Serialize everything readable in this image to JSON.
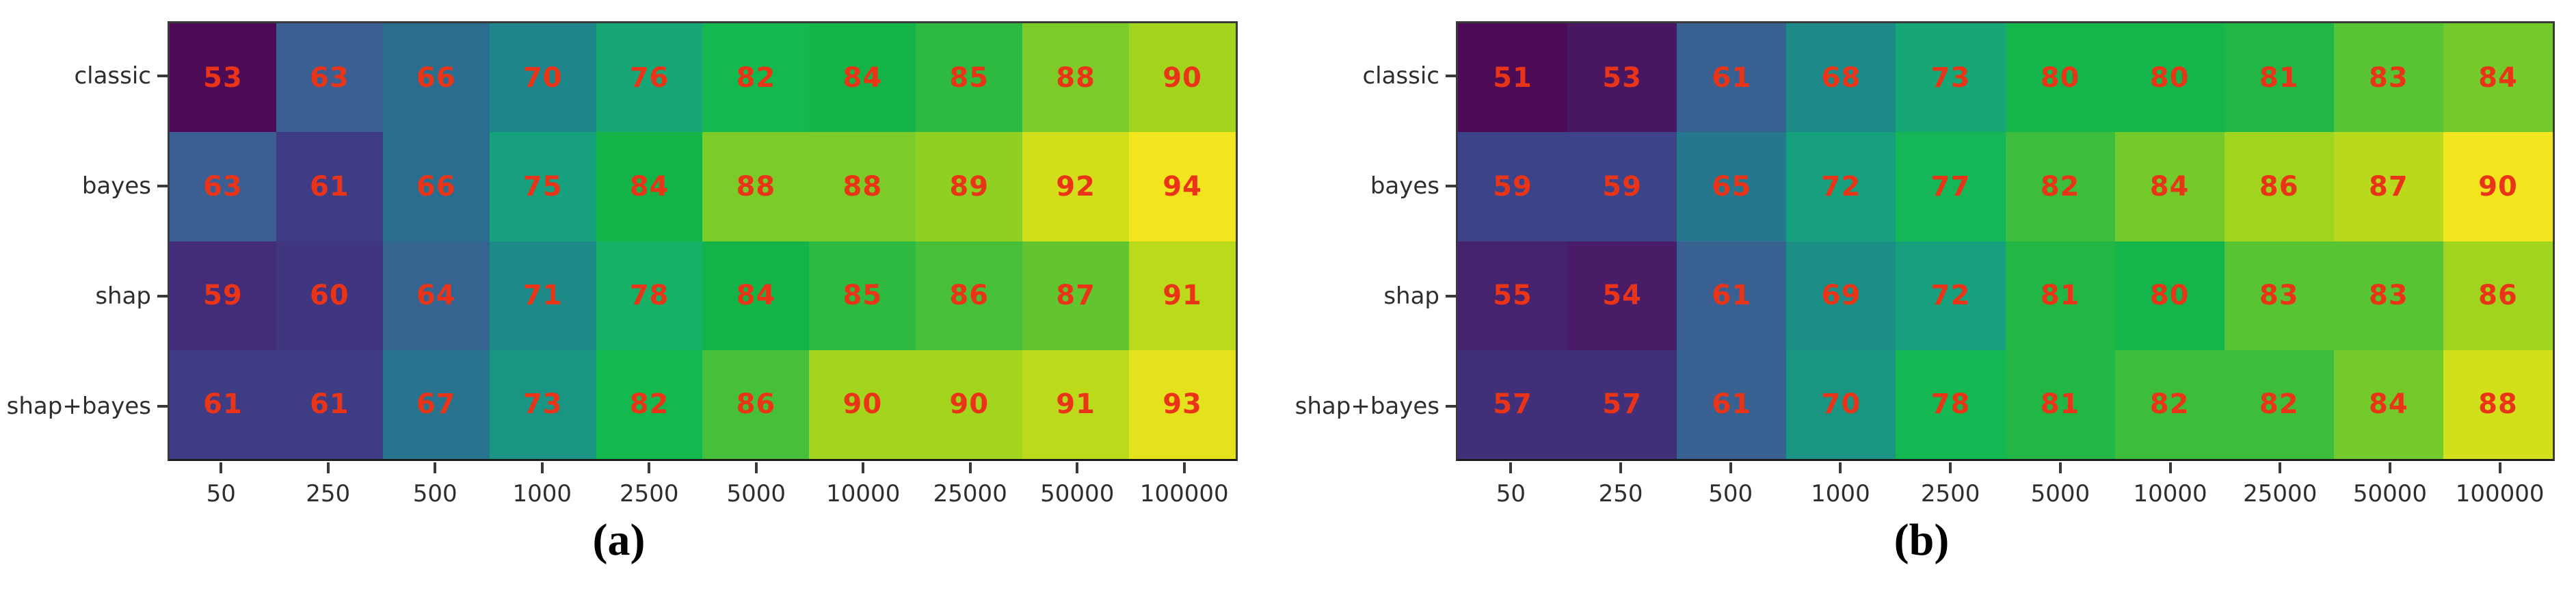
{
  "figure": {
    "type": "heatmap-comparison",
    "background": "#ffffff",
    "axis_text_color": "#2e2e2e",
    "value_text_color": "#ea3418",
    "spine_color": "#3a3a3a",
    "caption_color": "#000000"
  },
  "colormap": {
    "name": "viridis-like",
    "anchors": [
      {
        "t": 0.0,
        "color": "#4d0a55"
      },
      {
        "t": 0.146,
        "color": "#432d78"
      },
      {
        "t": 0.195,
        "color": "#3d3c85"
      },
      {
        "t": 0.244,
        "color": "#3b5f92"
      },
      {
        "t": 0.317,
        "color": "#2b6d8e"
      },
      {
        "t": 0.415,
        "color": "#1e858b"
      },
      {
        "t": 0.537,
        "color": "#17a07e"
      },
      {
        "t": 0.61,
        "color": "#16b166"
      },
      {
        "t": 0.707,
        "color": "#13b94e"
      },
      {
        "t": 0.756,
        "color": "#14b348"
      },
      {
        "t": 0.854,
        "color": "#7ccb28"
      },
      {
        "t": 0.902,
        "color": "#a4d51e"
      },
      {
        "t": 0.951,
        "color": "#d4df1b"
      },
      {
        "t": 1.0,
        "color": "#f2e51d"
      }
    ]
  },
  "chart_data": [
    {
      "type": "heatmap",
      "caption": "(a)",
      "rows": [
        "classic",
        "bayes",
        "shap",
        "shap+bayes"
      ],
      "columns": [
        "50",
        "250",
        "500",
        "1000",
        "2500",
        "5000",
        "10000",
        "25000",
        "50000",
        "100000"
      ],
      "values": [
        [
          53,
          63,
          66,
          70,
          76,
          82,
          84,
          85,
          88,
          90
        ],
        [
          63,
          61,
          66,
          75,
          84,
          88,
          88,
          89,
          92,
          94
        ],
        [
          59,
          60,
          64,
          71,
          78,
          84,
          85,
          86,
          87,
          91
        ],
        [
          61,
          61,
          67,
          73,
          82,
          86,
          90,
          90,
          91,
          93
        ]
      ],
      "vmin": 53,
      "vmax": 94,
      "legend": "none",
      "grid": "off"
    },
    {
      "type": "heatmap",
      "caption": "(b)",
      "rows": [
        "classic",
        "bayes",
        "shap",
        "shap+bayes"
      ],
      "columns": [
        "50",
        "250",
        "500",
        "1000",
        "2500",
        "5000",
        "10000",
        "25000",
        "50000",
        "100000"
      ],
      "values": [
        [
          51,
          53,
          61,
          68,
          73,
          80,
          80,
          81,
          83,
          84
        ],
        [
          59,
          59,
          65,
          72,
          77,
          82,
          84,
          86,
          87,
          90
        ],
        [
          55,
          54,
          61,
          69,
          72,
          81,
          80,
          83,
          83,
          86
        ],
        [
          57,
          57,
          61,
          70,
          78,
          81,
          82,
          82,
          84,
          88
        ]
      ],
      "vmin": 51,
      "vmax": 90,
      "legend": "none",
      "grid": "off"
    }
  ]
}
